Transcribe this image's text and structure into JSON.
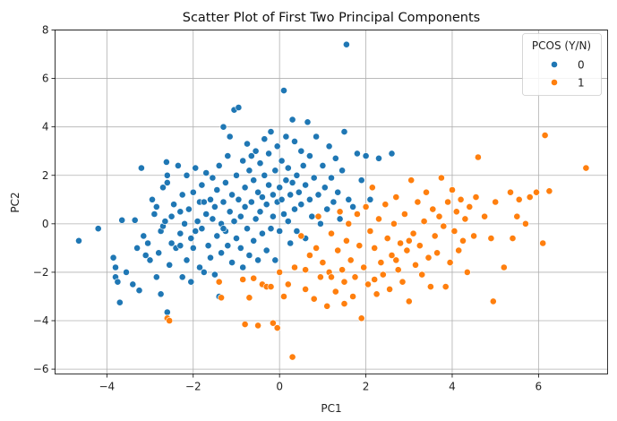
{
  "chart_data": {
    "type": "scatter",
    "title": "Scatter Plot of First Two Principal Components",
    "xlabel": "PC1",
    "ylabel": "PC2",
    "xlim": [
      -5.2,
      7.6
    ],
    "ylim": [
      -6.2,
      8.0
    ],
    "xticks": [
      -4,
      -2,
      0,
      2,
      4,
      6
    ],
    "yticks": [
      -6,
      -4,
      -2,
      0,
      2,
      4,
      6,
      8
    ],
    "xtick_labels": [
      "−4",
      "−2",
      "0",
      "2",
      "4",
      "6"
    ],
    "ytick_labels": [
      "−6",
      "−4",
      "−2",
      "0",
      "2",
      "4",
      "6",
      "8"
    ],
    "grid": true,
    "legend": {
      "title": "PCOS (Y/N)",
      "placement": "top-right",
      "entries": [
        "0",
        "1"
      ]
    },
    "series": [
      {
        "name": "0",
        "color": "#1f77b4",
        "points": [
          [
            -4.65,
            -0.7
          ],
          [
            -4.2,
            -0.2
          ],
          [
            -3.85,
            -1.4
          ],
          [
            -3.8,
            -1.8
          ],
          [
            -3.8,
            -2.2
          ],
          [
            -3.75,
            -2.4
          ],
          [
            -3.7,
            -3.25
          ],
          [
            -3.65,
            0.15
          ],
          [
            -3.55,
            -2.0
          ],
          [
            -3.4,
            -2.5
          ],
          [
            -3.35,
            0.15
          ],
          [
            -3.3,
            -1.0
          ],
          [
            -3.25,
            -2.75
          ],
          [
            -3.2,
            2.3
          ],
          [
            -3.15,
            -0.5
          ],
          [
            -3.1,
            -1.3
          ],
          [
            -3.05,
            -0.8
          ],
          [
            -3.0,
            -1.5
          ],
          [
            -2.95,
            1.0
          ],
          [
            -2.9,
            0.4
          ],
          [
            -2.85,
            -2.2
          ],
          [
            -2.85,
            0.7
          ],
          [
            -2.8,
            -1.2
          ],
          [
            -2.75,
            -0.3
          ],
          [
            -2.75,
            -2.9
          ],
          [
            -2.7,
            1.5
          ],
          [
            -2.7,
            -0.1
          ],
          [
            -2.65,
            0.1
          ],
          [
            -2.62,
            2.55
          ],
          [
            -2.6,
            -3.65
          ],
          [
            -2.6,
            1.7
          ],
          [
            -2.55,
            -1.7
          ],
          [
            -2.5,
            0.3
          ],
          [
            -2.5,
            -0.8
          ],
          [
            -2.45,
            0.8
          ],
          [
            -2.4,
            -1.0
          ],
          [
            -2.35,
            2.4
          ],
          [
            -2.3,
            -0.4
          ],
          [
            -2.3,
            0.5
          ],
          [
            -2.25,
            -2.2
          ],
          [
            -2.25,
            1.2
          ],
          [
            -2.2,
            0.0
          ],
          [
            -2.15,
            -1.5
          ],
          [
            -2.15,
            2.0
          ],
          [
            -2.1,
            0.6
          ],
          [
            -2.05,
            -0.6
          ],
          [
            -2.05,
            -2.4
          ],
          [
            -2.0,
            1.3
          ],
          [
            -2.0,
            -1.0
          ],
          [
            -1.95,
            2.3
          ],
          [
            -1.9,
            0.1
          ],
          [
            -1.85,
            -1.8
          ],
          [
            -1.85,
            0.9
          ],
          [
            -1.8,
            -0.2
          ],
          [
            -1.8,
            1.6
          ],
          [
            -1.75,
            -2.0
          ],
          [
            -1.7,
            0.4
          ],
          [
            -1.7,
            2.1
          ],
          [
            -1.65,
            -0.9
          ],
          [
            -1.6,
            1.0
          ],
          [
            -1.6,
            -1.4
          ],
          [
            -1.55,
            1.9
          ],
          [
            -1.55,
            0.2
          ],
          [
            -1.5,
            -2.1
          ],
          [
            -1.5,
            0.7
          ],
          [
            -1.45,
            -0.5
          ],
          [
            -1.45,
            1.4
          ],
          [
            -1.4,
            -3.0
          ],
          [
            -1.4,
            2.4
          ],
          [
            -1.35,
            0.0
          ],
          [
            -1.35,
            -1.2
          ],
          [
            -1.3,
            0.9
          ],
          [
            -1.3,
            4.0
          ],
          [
            -1.25,
            -0.3
          ],
          [
            -1.25,
            1.7
          ],
          [
            -1.2,
            2.8
          ],
          [
            -1.2,
            -0.9
          ],
          [
            -1.15,
            0.5
          ],
          [
            -1.15,
            3.6
          ],
          [
            -1.1,
            -1.6
          ],
          [
            -1.1,
            1.2
          ],
          [
            -1.05,
            4.7
          ],
          [
            -1.05,
            0.1
          ],
          [
            -1.0,
            -0.6
          ],
          [
            -1.0,
            2.0
          ],
          [
            -0.95,
            4.8
          ],
          [
            -0.95,
            1.0
          ],
          [
            -0.9,
            -1.0
          ],
          [
            -0.9,
            0.3
          ],
          [
            -0.85,
            2.6
          ],
          [
            -0.85,
            -1.8
          ],
          [
            -0.8,
            1.5
          ],
          [
            -0.8,
            0.7
          ],
          [
            -0.75,
            -0.2
          ],
          [
            -0.75,
            3.3
          ],
          [
            -0.7,
            2.2
          ],
          [
            -0.7,
            -1.3
          ],
          [
            -0.65,
            0.9
          ],
          [
            -0.65,
            2.8
          ],
          [
            -0.6,
            -0.7
          ],
          [
            -0.6,
            1.8
          ],
          [
            -0.55,
            0.2
          ],
          [
            -0.55,
            3.0
          ],
          [
            -0.5,
            -1.5
          ],
          [
            -0.5,
            1.3
          ],
          [
            -0.45,
            0.5
          ],
          [
            -0.45,
            2.5
          ],
          [
            -0.4,
            -0.4
          ],
          [
            -0.4,
            1.1
          ],
          [
            -0.35,
            3.5
          ],
          [
            -0.35,
            2.0
          ],
          [
            -0.3,
            -1.1
          ],
          [
            -0.3,
            0.8
          ],
          [
            -0.25,
            1.6
          ],
          [
            -0.25,
            2.9
          ],
          [
            -0.2,
            -0.2
          ],
          [
            -0.2,
            3.8
          ],
          [
            -0.15,
            1.2
          ],
          [
            -0.15,
            0.3
          ],
          [
            -0.1,
            2.2
          ],
          [
            -0.1,
            -1.5
          ],
          [
            -0.05,
            0.9
          ],
          [
            -0.05,
            3.2
          ],
          [
            0.0,
            1.5
          ],
          [
            0.0,
            -0.3
          ],
          [
            0.05,
            2.6
          ],
          [
            0.05,
            1.0
          ],
          [
            0.1,
            5.5
          ],
          [
            0.1,
            0.4
          ],
          [
            0.15,
            1.8
          ],
          [
            0.15,
            3.6
          ],
          [
            0.2,
            0.1
          ],
          [
            0.2,
            2.3
          ],
          [
            0.25,
            1.2
          ],
          [
            0.25,
            -0.8
          ],
          [
            0.3,
            4.3
          ],
          [
            0.3,
            1.7
          ],
          [
            0.35,
            0.6
          ],
          [
            0.35,
            3.4
          ],
          [
            0.4,
            2.0
          ],
          [
            0.4,
            -0.3
          ],
          [
            0.45,
            1.3
          ],
          [
            0.5,
            3.0
          ],
          [
            0.5,
            0.8
          ],
          [
            0.55,
            2.4
          ],
          [
            0.6,
            1.6
          ],
          [
            0.6,
            -0.6
          ],
          [
            0.65,
            4.2
          ],
          [
            0.7,
            1.0
          ],
          [
            0.7,
            2.8
          ],
          [
            0.75,
            0.3
          ],
          [
            0.8,
            1.9
          ],
          [
            0.85,
            3.6
          ],
          [
            0.9,
            1.2
          ],
          [
            0.95,
            0.0
          ],
          [
            1.0,
            2.4
          ],
          [
            1.05,
            1.5
          ],
          [
            1.1,
            0.6
          ],
          [
            1.15,
            3.2
          ],
          [
            1.2,
            1.9
          ],
          [
            1.25,
            0.9
          ],
          [
            1.3,
            2.7
          ],
          [
            1.35,
            1.3
          ],
          [
            1.4,
            0.2
          ],
          [
            1.45,
            2.2
          ],
          [
            1.5,
            3.8
          ],
          [
            1.55,
            7.4
          ],
          [
            1.6,
            1.0
          ],
          [
            1.7,
            0.7
          ],
          [
            1.8,
            2.9
          ],
          [
            1.9,
            1.8
          ],
          [
            2.0,
            2.8
          ],
          [
            2.1,
            1.0
          ],
          [
            2.3,
            2.7
          ],
          [
            2.6,
            2.9
          ],
          [
            -2.6,
            2.0
          ],
          [
            -2.3,
            -0.9
          ],
          [
            -1.95,
            -0.3
          ],
          [
            -1.75,
            0.9
          ],
          [
            -1.3,
            -0.2
          ]
        ]
      },
      {
        "name": "1",
        "color": "#ff7f0e",
        "points": [
          [
            -2.6,
            -3.9
          ],
          [
            -2.55,
            -4.0
          ],
          [
            -1.4,
            -2.4
          ],
          [
            -1.35,
            -3.05
          ],
          [
            -0.85,
            -2.3
          ],
          [
            -0.8,
            -4.15
          ],
          [
            -0.7,
            -3.05
          ],
          [
            -0.6,
            -2.25
          ],
          [
            -0.5,
            -4.2
          ],
          [
            -0.4,
            -2.5
          ],
          [
            -0.3,
            -2.6
          ],
          [
            -0.2,
            -2.6
          ],
          [
            -0.15,
            -4.1
          ],
          [
            -0.05,
            -4.3
          ],
          [
            0.0,
            -2.0
          ],
          [
            0.1,
            -3.0
          ],
          [
            0.2,
            -2.5
          ],
          [
            0.3,
            -5.5
          ],
          [
            0.35,
            -1.8
          ],
          [
            0.5,
            -0.5
          ],
          [
            0.6,
            -2.7
          ],
          [
            0.7,
            -1.3
          ],
          [
            0.8,
            -3.1
          ],
          [
            0.85,
            -1.0
          ],
          [
            0.9,
            0.3
          ],
          [
            0.95,
            -2.2
          ],
          [
            1.0,
            -1.6
          ],
          [
            1.1,
            -3.4
          ],
          [
            1.15,
            -2.0
          ],
          [
            1.2,
            -0.4
          ],
          [
            1.3,
            -2.8
          ],
          [
            1.35,
            -1.1
          ],
          [
            1.4,
            0.5
          ],
          [
            1.45,
            -1.9
          ],
          [
            1.5,
            -2.4
          ],
          [
            1.55,
            -0.7
          ],
          [
            1.6,
            0.0
          ],
          [
            1.65,
            -1.5
          ],
          [
            1.7,
            -3.0
          ],
          [
            1.75,
            -2.2
          ],
          [
            1.8,
            0.4
          ],
          [
            1.85,
            -0.9
          ],
          [
            1.9,
            -3.9
          ],
          [
            1.95,
            -1.8
          ],
          [
            2.0,
            0.7
          ],
          [
            2.05,
            -2.5
          ],
          [
            2.1,
            -0.3
          ],
          [
            2.15,
            1.5
          ],
          [
            2.2,
            -1.0
          ],
          [
            2.25,
            -2.9
          ],
          [
            2.3,
            0.2
          ],
          [
            2.35,
            -1.6
          ],
          [
            2.4,
            -2.1
          ],
          [
            2.45,
            0.8
          ],
          [
            2.5,
            -0.6
          ],
          [
            2.55,
            -2.7
          ],
          [
            2.6,
            -1.3
          ],
          [
            2.65,
            0.0
          ],
          [
            2.7,
            1.1
          ],
          [
            2.75,
            -1.9
          ],
          [
            2.8,
            -0.8
          ],
          [
            2.85,
            -2.4
          ],
          [
            2.9,
            0.4
          ],
          [
            2.95,
            -1.1
          ],
          [
            3.0,
            -3.2
          ],
          [
            3.05,
            1.8
          ],
          [
            3.1,
            -0.4
          ],
          [
            3.15,
            -1.7
          ],
          [
            3.2,
            0.9
          ],
          [
            3.25,
            -0.9
          ],
          [
            3.3,
            -2.1
          ],
          [
            3.35,
            0.1
          ],
          [
            3.4,
            1.3
          ],
          [
            3.45,
            -1.4
          ],
          [
            3.5,
            -2.6
          ],
          [
            3.55,
            0.6
          ],
          [
            3.6,
            -0.5
          ],
          [
            3.65,
            -1.2
          ],
          [
            3.7,
            0.3
          ],
          [
            3.75,
            1.9
          ],
          [
            3.8,
            -0.1
          ],
          [
            3.85,
            -2.6
          ],
          [
            3.9,
            0.9
          ],
          [
            3.95,
            -1.6
          ],
          [
            4.0,
            1.4
          ],
          [
            4.05,
            -0.3
          ],
          [
            4.1,
            0.5
          ],
          [
            4.15,
            -1.1
          ],
          [
            4.2,
            1.0
          ],
          [
            4.25,
            -0.7
          ],
          [
            4.3,
            0.2
          ],
          [
            4.35,
            -2.0
          ],
          [
            4.4,
            0.7
          ],
          [
            4.5,
            -0.5
          ],
          [
            4.55,
            1.1
          ],
          [
            4.6,
            2.75
          ],
          [
            4.75,
            0.3
          ],
          [
            4.9,
            -0.6
          ],
          [
            4.95,
            -3.2
          ],
          [
            5.0,
            0.9
          ],
          [
            5.2,
            -1.8
          ],
          [
            5.35,
            1.3
          ],
          [
            5.4,
            -0.6
          ],
          [
            5.5,
            0.3
          ],
          [
            5.55,
            1.0
          ],
          [
            5.7,
            0.0
          ],
          [
            5.8,
            1.1
          ],
          [
            5.95,
            1.3
          ],
          [
            6.1,
            -0.8
          ],
          [
            6.15,
            3.65
          ],
          [
            6.25,
            1.35
          ],
          [
            7.1,
            2.3
          ],
          [
            2.2,
            -2.3
          ],
          [
            2.7,
            -1.5
          ],
          [
            3.0,
            -0.7
          ],
          [
            1.5,
            -3.3
          ],
          [
            1.2,
            -2.2
          ],
          [
            0.6,
            -1.9
          ]
        ]
      }
    ]
  }
}
